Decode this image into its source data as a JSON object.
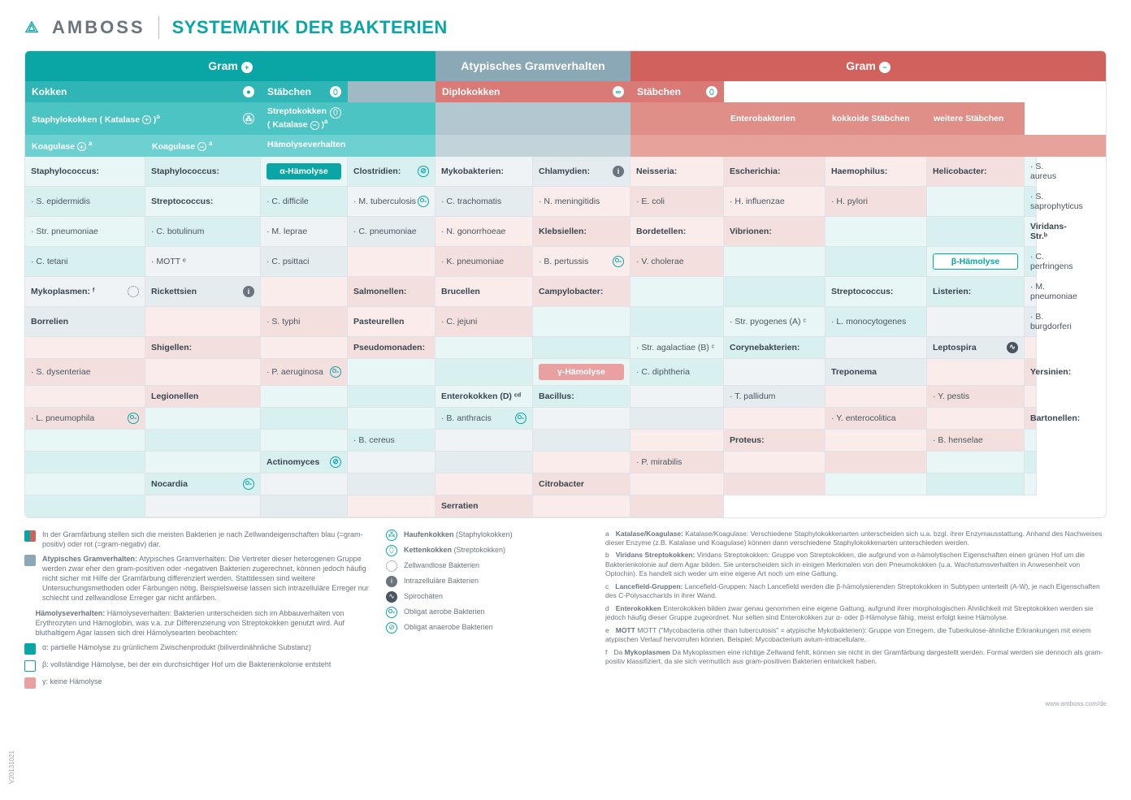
{
  "logo_text": "AMBOSS",
  "page_title": "SYSTEMATIK DER BAKTERIEN",
  "top_headers": {
    "pos": "Gram",
    "atyp": "Atypisches Gramverhalten",
    "neg": "Gram"
  },
  "sub": {
    "kokken": "Kokken",
    "stabchen": "Stäbchen",
    "diplo": "Diplokokken",
    "stabchen2": "Stäbchen"
  },
  "sub2": {
    "staph": "Staphylokokken  ( Katalase ",
    "staph_sup": "a",
    "strep": "Streptokokken",
    "strep2": "( Katalase ",
    "strep_sup": "a",
    "entero": "Enterobakterien",
    "kokkoid": "kokkoide Stäbchen",
    "weitere": "weitere Stäbchen"
  },
  "sub3": {
    "koag_pos": "Koagulase ",
    "koag_pos_sup": "a",
    "koag_neg": "Koagulase ",
    "koag_neg_sup": "a",
    "hamo": "Hämolyseverhalten"
  },
  "alpha": "α-Hämolyse",
  "beta": "β-Hämolyse",
  "gamma": "γ-Hämolyse",
  "rows": {
    "r1": [
      "Staphylococcus:",
      "Staphylococcus:",
      "",
      "Clostridien:",
      "Mykobakterien:",
      "Chlamydien:",
      "Neisseria:",
      "Escherichia:",
      "Haemophilus:",
      "Helicobacter:"
    ],
    "r2": [
      "· S. aureus",
      "· S. epidermidis",
      "Streptococcus:",
      "· C. difficile",
      "· M. tuberculosis",
      "· C. trachomatis",
      "· N. meningitidis",
      "· E. coli",
      "· H. influenzae",
      "· H. pylori"
    ],
    "r3": [
      "",
      "· S. saprophyticus",
      "· Str. pneumoniae",
      "· C. botulinum",
      "· M. leprae",
      "· C. pneumoniae",
      "· N. gonorrhoeae",
      "Klebsiellen:",
      "Bordetellen:",
      "Vibrionen:"
    ],
    "r4": [
      "",
      "",
      "Viridans-Str.ᵇ",
      "· C. tetani",
      "· MOTT ᵉ",
      "· C. psittaci",
      "",
      "· K. pneumoniae",
      "· B. pertussis",
      "· V. cholerae"
    ],
    "r5": [
      "",
      "",
      "",
      "· C. perfringens",
      "Mykoplasmen: ᶠ",
      "Rickettsien",
      "",
      "Salmonellen:",
      "Brucellen",
      "Campylobacter:"
    ],
    "r6": [
      "",
      "",
      "Streptococcus:",
      "Listerien:",
      "· M. pneumoniae",
      "Borrelien",
      "",
      "· S. typhi",
      "Pasteurellen",
      "· C. jejuni"
    ],
    "r7": [
      "",
      "",
      "· Str. pyogenes (A) ᶜ",
      "· L. monocytogenes",
      "",
      "· B. burgdorferi",
      "",
      "Shigellen:",
      "",
      "Pseudomonaden:"
    ],
    "r8": [
      "",
      "",
      "· Str. agalactiae (B) ᶜ",
      "Corynebakterien:",
      "",
      "Leptospira",
      "",
      "· S. dysenteriae",
      "",
      "· P. aeruginosa"
    ],
    "r9": [
      "",
      "",
      "",
      "· C. diphtheria",
      "",
      "Treponema",
      "",
      "Yersinien:",
      "",
      "Legionellen"
    ],
    "r10": [
      "",
      "",
      "Enterokokken (D) ᶜᵈ",
      "Bacillus:",
      "",
      "· T. pallidum",
      "",
      "· Y. pestis",
      "",
      "· L. pneumophila"
    ],
    "r11": [
      "",
      "",
      "",
      "· B. anthracis",
      "",
      "",
      "",
      "· Y. enterocolitica",
      "",
      "Bartonellen:"
    ],
    "r12": [
      "",
      "",
      "",
      "· B. cereus",
      "",
      "",
      "",
      "Proteus:",
      "",
      "· B. henselae"
    ],
    "r13": [
      "",
      "",
      "",
      "Actinomyces",
      "",
      "",
      "",
      "· P. mirabilis",
      "",
      ""
    ],
    "r14": [
      "",
      "",
      "",
      "Nocardia",
      "",
      "",
      "",
      "Citrobacter",
      "",
      ""
    ],
    "r15": [
      "",
      "",
      "",
      "",
      "",
      "",
      "",
      "Serratien",
      "",
      ""
    ]
  },
  "legend_left": {
    "gram": "In der Gramfärbung stellen sich die meisten Bakterien je nach Zellwandeigenschaften blau (=gram-positiv) oder rot (=gram-negativ) dar.",
    "atyp": "Atypisches Gramverhalten: Die Vertreter dieser heterogenen Gruppe werden zwar eher den gram-positiven oder -negativen Bakterien zugerechnet, können jedoch häufig nicht sicher mit Hilfe der Gramfärbung differenziert werden. Stattdessen sind weitere Untersuchungsmethoden oder Färbungen nötig. Beispielsweise lassen sich intrazelluläre Erreger nur schlecht und zellwandlose Erreger gar nicht anfärben.",
    "hamo_t": "Hämolyseverhalten: Bakterien unterscheiden sich im Abbauverhalten von Erythrozyten und Hämoglobin, was v.a. zur Differenzierung von Streptokokken genutzt wird. Auf bluthaltigem Agar lassen sich drei Hämolysearten beobachten:",
    "a": "α: partielle Hämolyse zu grünlichem Zwischenprodukt (biliverdinähnliche Substanz)",
    "b": "β: vollständige Hämolyse, bei der ein durchsichtiger Hof um die Bakterienkolonie entsteht",
    "c": "γ: keine Hämolyse"
  },
  "legend_mid": {
    "haufen": "Haufenkokken (Staphylokokken)",
    "ketten": "Kettenkokken (Streptokokken)",
    "zellwand": "Zellwandlose Bakterien",
    "intra": "Intrazelluläre Bakterien",
    "spiro": "Spirochäten",
    "aerob": "Obligat aerobe Bakterien",
    "anaerob": "Obligat anaerobe Bakterien"
  },
  "legend_right": {
    "a": "Katalase/Koagulase: Verschiedene Staphylokokkenarten unterscheiden sich u.a. bzgl. ihrer Enzymausstattung. Anhand des Nachweises dieser Enzyme (z.B. Katalase und Koagulase) können dann verschiedene Staphylokokkenarten unterschieden werden.",
    "b": "Viridans Streptokokken: Gruppe von Streptokokken, die aufgrund von α-hämolytischen Eigenschaften einen grünen Hof um die Bakterienkolonie auf dem Agar bilden. Sie unterscheiden sich in einigen Merkmalen von den Pneumokokken (u.a. Wachstumsverhalten in Anwesenheit von Optochin). Es handelt sich weder um eine eigene Art noch um eine Gattung.",
    "c": "Lancefield-Gruppen: Nach Lancefield werden die β-hämolysierenden Streptokokken in Subtypen unterteilt (A-W), je nach Eigenschaften des C-Polysaccharids in ihrer Wand.",
    "d": "Enterokokken bilden zwar genau genommen eine eigene Gattung, aufgrund ihrer morphologischen Ähnlichkeit mit Streptokokken werden sie jedoch häufig dieser Gruppe zugeordnet. Nur selten sind Enterokokken zur α- oder β-Hämolyse fähig, meist erfolgt keine Hämolyse.",
    "e": "MOTT (\"Mycobacteria other than tuberculosis\" = atypische Mykobakterien): Gruppe von Erregern, die Tuberkulose-ähnliche Erkrankungen mit einem atypischen Verlauf hervorrufen können. Beispiel: Mycobacterium avium-intracellulare.",
    "f": "Da Mykoplasmen eine richtige Zellwand fehlt, können sie nicht in der Gramfärbung dargestellt werden. Formal werden sie dennoch als gram-positiv klassifiziert, da sie sich vermutlich aus gram-positiven Bakterien entwickelt haben."
  },
  "version": "V20131021",
  "url": "www.amboss.com/de"
}
